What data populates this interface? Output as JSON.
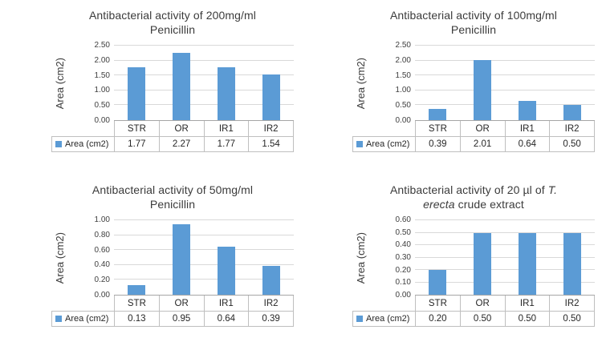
{
  "page": {
    "background": "#ffffff"
  },
  "colors": {
    "bar": "#5b9bd5",
    "gridline": "#d9d9d9",
    "axis_line": "#a6a6a6",
    "table_border": "#bfbfbf",
    "title_text": "#3b3b3b",
    "tick_text": "#404040",
    "table_text": "#262626"
  },
  "chart_data": [
    {
      "type": "bar",
      "title": "Antibacterial activity of 200mg/ml Penicillin",
      "title_lines": [
        [
          {
            "text": "Antibacterial activity of 200mg/ml",
            "italic": false
          }
        ],
        [
          {
            "text": "Penicillin",
            "italic": false
          }
        ]
      ],
      "xlabel": "",
      "ylabel": "Area (cm2)",
      "categories": [
        "STR",
        "OR",
        "IR1",
        "IR2"
      ],
      "series": [
        {
          "name": "Area (cm2)",
          "values": [
            1.77,
            2.27,
            1.77,
            1.54
          ],
          "value_labels": [
            "1.77",
            "2.27",
            "1.77",
            "1.54"
          ]
        }
      ],
      "ylim": [
        0,
        2.5
      ],
      "yticks": [
        "0.00",
        "0.50",
        "1.00",
        "1.50",
        "2.00",
        "2.50"
      ],
      "grid": true,
      "legend_position": "table-left"
    },
    {
      "type": "bar",
      "title": "Antibacterial activity of 100mg/ml Penicillin",
      "title_lines": [
        [
          {
            "text": "Antibacterial activity of 100mg/ml",
            "italic": false
          }
        ],
        [
          {
            "text": "Penicillin",
            "italic": false
          }
        ]
      ],
      "xlabel": "",
      "ylabel": "Area (cm2)",
      "categories": [
        "STR",
        "OR",
        "IR1",
        "IR2"
      ],
      "series": [
        {
          "name": "Area (cm2)",
          "values": [
            0.39,
            2.01,
            0.64,
            0.5
          ],
          "value_labels": [
            "0.39",
            "2.01",
            "0.64",
            "0.50"
          ]
        }
      ],
      "ylim": [
        0,
        2.5
      ],
      "yticks": [
        "0.00",
        "0.50",
        "1.00",
        "1.50",
        "2.00",
        "2.50"
      ],
      "grid": true,
      "legend_position": "table-left"
    },
    {
      "type": "bar",
      "title": "Antibacterial activity of 50mg/ml Penicillin",
      "title_lines": [
        [
          {
            "text": "Antibacterial activity of 50mg/ml",
            "italic": false
          }
        ],
        [
          {
            "text": "Penicillin",
            "italic": false
          }
        ]
      ],
      "xlabel": "",
      "ylabel": "Area (cm2)",
      "categories": [
        "STR",
        "OR",
        "IR1",
        "IR2"
      ],
      "series": [
        {
          "name": "Area (cm2)",
          "values": [
            0.13,
            0.95,
            0.64,
            0.39
          ],
          "value_labels": [
            "0.13",
            "0.95",
            "0.64",
            "0.39"
          ]
        }
      ],
      "ylim": [
        0,
        1.0
      ],
      "yticks": [
        "0.00",
        "0.20",
        "0.40",
        "0.60",
        "0.80",
        "1.00"
      ],
      "grid": true,
      "legend_position": "table-left"
    },
    {
      "type": "bar",
      "title": "Antibacterial activity of 20 µl of T. erecta crude extract",
      "title_lines": [
        [
          {
            "text": "Antibacterial activity of 20 µl of ",
            "italic": false
          },
          {
            "text": "T.",
            "italic": true
          }
        ],
        [
          {
            "text": "erecta",
            "italic": true
          },
          {
            "text": " crude extract",
            "italic": false
          }
        ]
      ],
      "xlabel": "",
      "ylabel": "Area (cm2)",
      "categories": [
        "STR",
        "OR",
        "IR1",
        "IR2"
      ],
      "series": [
        {
          "name": "Area (cm2)",
          "values": [
            0.2,
            0.5,
            0.5,
            0.5
          ],
          "value_labels": [
            "0.20",
            "0.50",
            "0.50",
            "0.50"
          ]
        }
      ],
      "ylim": [
        0,
        0.6
      ],
      "yticks": [
        "0.00",
        "0.10",
        "0.20",
        "0.30",
        "0.40",
        "0.50",
        "0.60"
      ],
      "grid": true,
      "legend_position": "table-left"
    }
  ]
}
